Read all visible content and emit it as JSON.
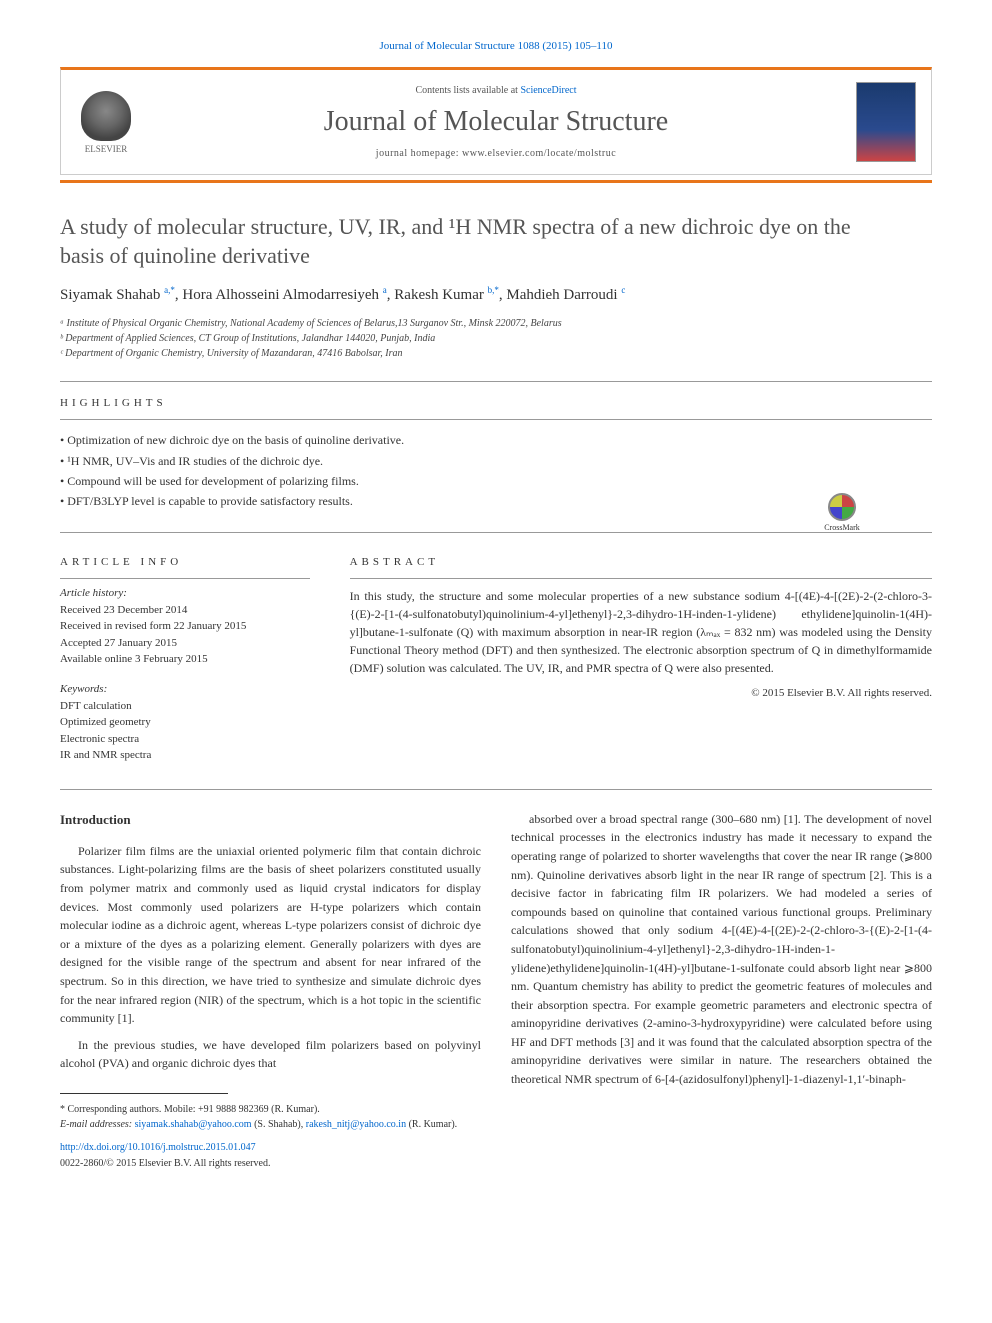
{
  "citation": "Journal of Molecular Structure 1088 (2015) 105–110",
  "header": {
    "contents_prefix": "Contents lists available at ",
    "contents_link": "ScienceDirect",
    "journal_name": "Journal of Molecular Structure",
    "homepage_prefix": "journal homepage: ",
    "homepage_url": "www.elsevier.com/locate/molstruc",
    "publisher": "ELSEVIER"
  },
  "crossmark_label": "CrossMark",
  "title": "A study of molecular structure, UV, IR, and ¹H NMR spectra of a new dichroic dye on the basis of quinoline derivative",
  "authors_html": "Siyamak Shahab <sup>a,*</sup>, Hora Alhosseini Almodarresiyeh <sup>a</sup>, Rakesh Kumar <sup>b,*</sup>, Mahdieh Darroudi <sup>c</sup>",
  "affiliations": [
    "ᵃ Institute of Physical Organic Chemistry, National Academy of Sciences of Belarus,13 Surganov Str., Minsk 220072, Belarus",
    "ᵇ Department of Applied Sciences, CT Group of Institutions, Jalandhar 144020, Punjab, India",
    "ᶜ Department of Organic Chemistry, University of Mazandaran, 47416 Babolsar, Iran"
  ],
  "highlights_label": "HIGHLIGHTS",
  "highlights": [
    "Optimization of new dichroic dye on the basis of quinoline derivative.",
    "¹H NMR, UV–Vis and IR studies of the dichroic dye.",
    "Compound will be used for development of polarizing films.",
    "DFT/B3LYP level is capable to provide satisfactory results."
  ],
  "article_info_label": "ARTICLE INFO",
  "abstract_label": "ABSTRACT",
  "history": {
    "heading": "Article history:",
    "items": [
      "Received 23 December 2014",
      "Received in revised form 22 January 2015",
      "Accepted 27 January 2015",
      "Available online 3 February 2015"
    ]
  },
  "keywords": {
    "heading": "Keywords:",
    "items": [
      "DFT calculation",
      "Optimized geometry",
      "Electronic spectra",
      "IR and NMR spectra"
    ]
  },
  "abstract": "In this study, the structure and some molecular properties of a new substance sodium 4-[(4E)-4-[(2E)-2-(2-chloro-3-{(E)-2-[1-(4-sulfonatobutyl)quinolinium-4-yl]ethenyl}-2,3-dihydro-1H-inden-1-ylidene) ethylidene]quinolin-1(4H)-yl]butane-1-sulfonate (Q) with maximum absorption in near-IR region (λₘₐₓ = 832 nm) was modeled using the Density Functional Theory method (DFT) and then synthesized. The electronic absorption spectrum of Q in dimethylformamide (DMF) solution was calculated. The UV, IR, and PMR spectra of Q were also presented.",
  "copyright": "© 2015 Elsevier B.V. All rights reserved.",
  "intro_heading": "Introduction",
  "intro_paragraphs": [
    "Polarizer film films are the uniaxial oriented polymeric film that contain dichroic substances. Light-polarizing films are the basis of sheet polarizers constituted usually from polymer matrix and commonly used as liquid crystal indicators for display devices. Most commonly used polarizers are H-type polarizers which contain molecular iodine as a dichroic agent, whereas L-type polarizers consist of dichroic dye or a mixture of the dyes as a polarizing element. Generally polarizers with dyes are designed for the visible range of the spectrum and absent for near infrared of the spectrum. So in this direction, we have tried to synthesize and simulate dichroic dyes for the near infrared region (NIR) of the spectrum, which is a hot topic in the scientific community [1].",
    "In the previous studies, we have developed film polarizers based on polyvinyl alcohol (PVA) and organic dichroic dyes that"
  ],
  "col2_text": "absorbed over a broad spectral range (300–680 nm) [1]. The development of novel technical processes in the electronics industry has made it necessary to expand the operating range of polarized to shorter wavelengths that cover the near IR range (⩾800 nm). Quinoline derivatives absorb light in the near IR range of spectrum [2]. This is a decisive factor in fabricating film IR polarizers. We had modeled a series of compounds based on quinoline that contained various functional groups. Preliminary calculations showed that only sodium 4-[(4E)-4-[(2E)-2-(2-chloro-3-{(E)-2-[1-(4-sulfonatobutyl)quinolinium-4-yl]ethenyl}-2,3-dihydro-1H-inden-1-ylidene)ethylidene]quinolin-1(4H)-yl]butane-1-sulfonate could absorb light near ⩾800 nm. Quantum chemistry has ability to predict the geometric features of molecules and their absorption spectra. For example geometric parameters and electronic spectra of aminopyridine derivatives (2-amino-3-hydroxypyridine) were calculated before using HF and DFT methods [3] and it was found that the calculated absorption spectra of the aminopyridine derivatives were similar in nature. The researchers obtained the theoretical NMR spectrum of 6-[4-(azidosulfonyl)phenyl]-1-diazenyl-1,1′-binaph-",
  "footer": {
    "corresponding": "* Corresponding authors. Mobile: +91 9888 982369 (R. Kumar).",
    "email_label": "E-mail addresses: ",
    "email1": "siyamak.shahab@yahoo.com",
    "email1_who": " (S. Shahab), ",
    "email2": "rakesh_nitj@yahoo.co.in",
    "email2_who": " (R. Kumar).",
    "doi": "http://dx.doi.org/10.1016/j.molstruc.2015.01.047",
    "issn": "0022-2860/© 2015 Elsevier B.V. All rights reserved."
  },
  "colors": {
    "accent": "#e8751a",
    "link": "#0066cc",
    "text": "#333333",
    "heading": "#555555"
  },
  "typography": {
    "body_fontsize": 12,
    "title_fontsize": 22,
    "journal_fontsize": 28,
    "small_fontsize": 10
  }
}
